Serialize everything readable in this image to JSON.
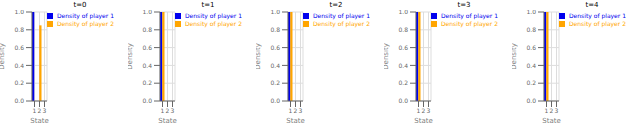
{
  "chart_data": [
    {
      "type": "bar",
      "title": "t=0",
      "xlabel": "State",
      "ylabel": "Density",
      "x": [
        1,
        2,
        3
      ],
      "series": [
        {
          "name": "Density of player 1",
          "color": "#0000ee",
          "values": [
            1.0,
            0.0,
            0.0
          ]
        },
        {
          "name": "Density of player 2",
          "color": "#ffa500",
          "values": [
            0.0,
            0.85,
            0.0
          ]
        }
      ],
      "xlim": [
        0.5,
        3.5
      ],
      "xticks": [
        1,
        2,
        3
      ],
      "ylim": [
        0.0,
        1.0
      ],
      "yticks": [
        {
          "value": 0.0,
          "label": "0.0"
        },
        0.2,
        0.4,
        0.6,
        0.8,
        {
          "value": 1.0,
          "label": "1.0"
        }
      ],
      "grid": true,
      "legend": "upper right"
    },
    {
      "type": "bar",
      "title": "t=1",
      "xlabel": "State",
      "ylabel": "Density",
      "x": [
        1,
        2,
        3
      ],
      "series": [
        {
          "name": "Density of player 1",
          "color": "#0000ee",
          "values": [
            1.0,
            0.0,
            0.0
          ]
        },
        {
          "name": "Density of player 2",
          "color": "#ffa500",
          "values": [
            1.0,
            0.0,
            0.0
          ]
        }
      ],
      "xlim": [
        0.5,
        3.5
      ],
      "xticks": [
        1,
        2,
        3
      ],
      "ylim": [
        0.0,
        1.0
      ],
      "yticks": [
        {
          "value": 0.0,
          "label": "0.0"
        },
        0.2,
        0.4,
        0.6,
        0.8,
        {
          "value": 1.0,
          "label": "1.0"
        }
      ],
      "grid": true,
      "legend": "upper right"
    },
    {
      "type": "bar",
      "title": "t=2",
      "xlabel": "State",
      "ylabel": "Density",
      "x": [
        1,
        2,
        3
      ],
      "series": [
        {
          "name": "Density of player 1",
          "color": "#0000ee",
          "values": [
            1.0,
            0.0,
            0.0
          ]
        },
        {
          "name": "Density of player 2",
          "color": "#ffa500",
          "values": [
            1.0,
            0.0,
            0.0
          ]
        }
      ],
      "xlim": [
        0.5,
        3.5
      ],
      "xticks": [
        1,
        2,
        3
      ],
      "ylim": [
        0.0,
        1.0
      ],
      "yticks": [
        {
          "value": 0.0,
          "label": "0.0"
        },
        0.2,
        0.4,
        0.6,
        0.8,
        {
          "value": 1.0,
          "label": "1.0"
        }
      ],
      "grid": true,
      "legend": "upper right"
    },
    {
      "type": "bar",
      "title": "t=3",
      "xlabel": "State",
      "ylabel": "Density",
      "x": [
        1,
        2,
        3
      ],
      "series": [
        {
          "name": "Density of player 1",
          "color": "#0000ee",
          "values": [
            1.0,
            0.0,
            0.0
          ]
        },
        {
          "name": "Density of player 2",
          "color": "#ffa500",
          "values": [
            1.0,
            0.0,
            0.0
          ]
        }
      ],
      "xlim": [
        0.5,
        3.5
      ],
      "xticks": [
        1,
        2,
        3
      ],
      "ylim": [
        0.0,
        1.0
      ],
      "yticks": [
        {
          "value": 0.0,
          "label": "0.0"
        },
        0.2,
        0.4,
        0.6,
        0.8,
        {
          "value": 1.0,
          "label": "1.0"
        }
      ],
      "grid": true,
      "legend": "upper right"
    },
    {
      "type": "bar",
      "title": "t=4",
      "xlabel": "State",
      "ylabel": "Density",
      "x": [
        1,
        2,
        3
      ],
      "series": [
        {
          "name": "Density of player 1",
          "color": "#0000ee",
          "values": [
            1.0,
            0.0,
            0.0
          ]
        },
        {
          "name": "Density of player 2",
          "color": "#ffa500",
          "values": [
            1.0,
            0.0,
            0.0
          ]
        }
      ],
      "xlim": [
        0.5,
        3.5
      ],
      "xticks": [
        1,
        2,
        3
      ],
      "ylim": [
        0.0,
        1.0
      ],
      "yticks": [
        {
          "value": 0.0,
          "label": "0.0"
        },
        0.2,
        0.4,
        0.6,
        0.8,
        {
          "value": 1.0,
          "label": "1.0"
        }
      ],
      "grid": true,
      "legend": "upper right"
    }
  ]
}
